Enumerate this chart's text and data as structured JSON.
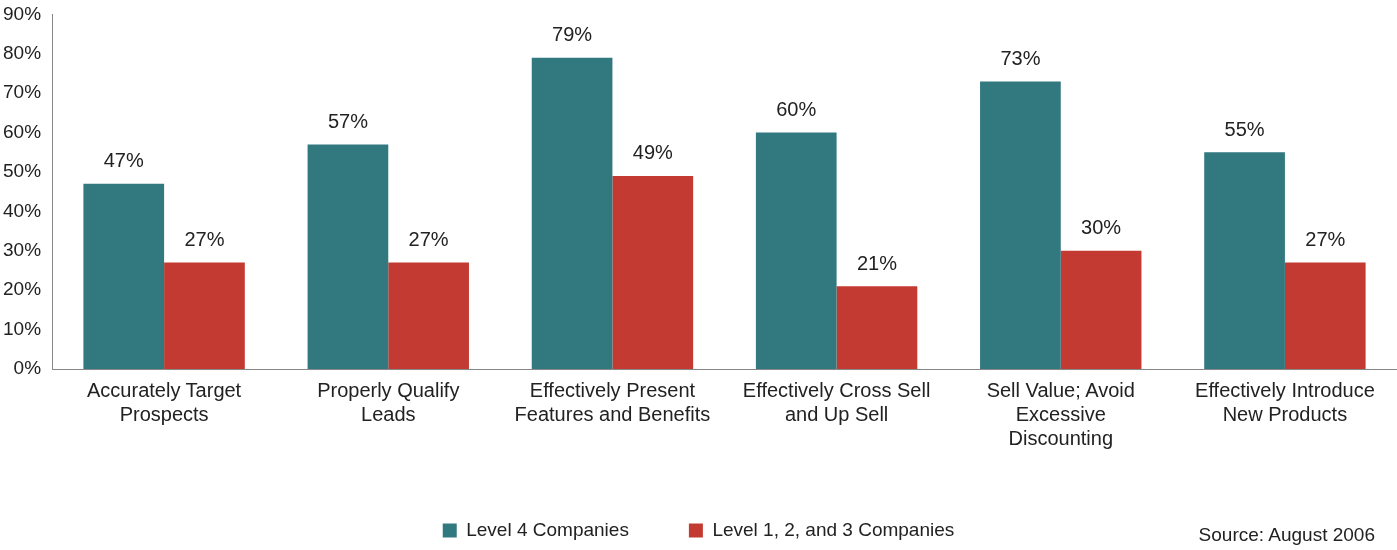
{
  "chart_data": {
    "type": "bar",
    "categories": [
      "Accurately Target Prospects",
      "Properly Qualify Leads",
      "Effectively Present Features and Benefits",
      "Effectively Cross Sell and Up Sell",
      "Sell Value; Avoid Excessive Discounting",
      "Effectively Introduce New Products"
    ],
    "series": [
      {
        "name": "Level 4 Companies",
        "color": "#31787f",
        "values": [
          47,
          57,
          79,
          60,
          73,
          55
        ],
        "value_labels": [
          "47%",
          "57%",
          "79%",
          "60%",
          "73%",
          "55%"
        ]
      },
      {
        "name": "Level 1, 2, and 3 Companies",
        "color": "#c33a32",
        "values": [
          27,
          27,
          49,
          21,
          30,
          27
        ],
        "value_labels": [
          "27%",
          "27%",
          "49%",
          "21%",
          "30%",
          "27%"
        ]
      }
    ],
    "ylim": [
      0,
      90
    ],
    "yticks": [
      {
        "value": 0,
        "label": "0%"
      },
      {
        "value": 10,
        "label": "10%"
      },
      {
        "value": 20,
        "label": "20%"
      },
      {
        "value": 30,
        "label": "30%"
      },
      {
        "value": 40,
        "label": "40%"
      },
      {
        "value": 50,
        "label": "50%"
      },
      {
        "value": 60,
        "label": "60%"
      },
      {
        "value": 70,
        "label": "70%"
      },
      {
        "value": 80,
        "label": "80%"
      },
      {
        "value": 90,
        "label": "90%"
      }
    ],
    "grid": false,
    "legend": "bottom",
    "annotations": [
      "Source: August 2006"
    ]
  }
}
